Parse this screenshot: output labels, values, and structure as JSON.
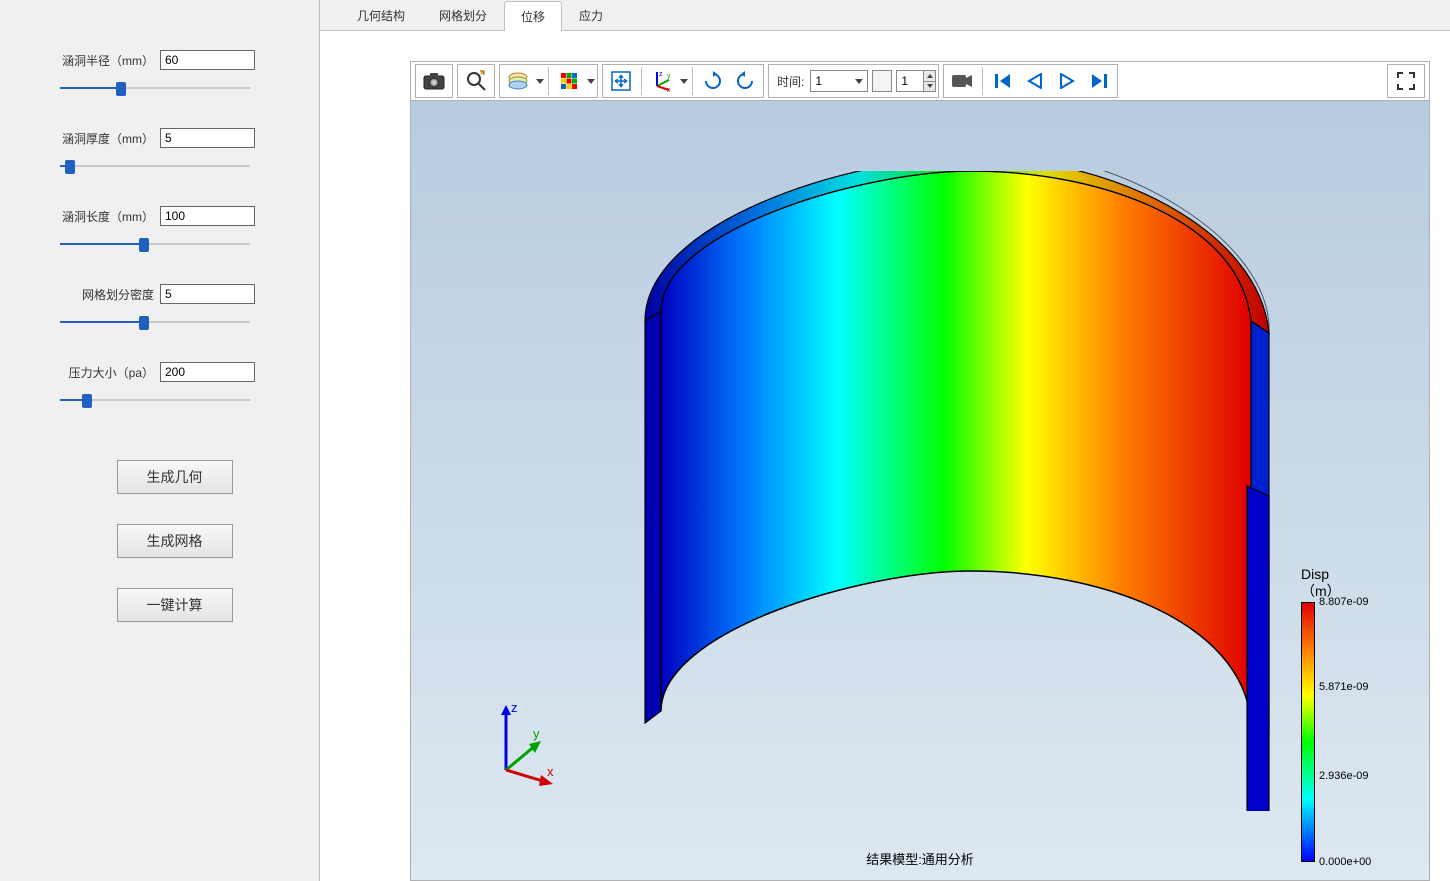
{
  "tabs": {
    "items": [
      "几何结构",
      "网格划分",
      "位移",
      "应力"
    ],
    "active_index": 2
  },
  "params": [
    {
      "label": "涵洞半径（mm）",
      "value": "60",
      "slider_pct": 32
    },
    {
      "label": "涵洞厚度（mm）",
      "value": "5",
      "slider_pct": 5
    },
    {
      "label": "涵洞长度（mm）",
      "value": "100",
      "slider_pct": 44
    },
    {
      "label": "网格划分密度",
      "value": "5",
      "slider_pct": 44
    },
    {
      "label": "压力大小（pa）",
      "value": "200",
      "slider_pct": 14
    }
  ],
  "buttons": {
    "gen_geom": "生成几何",
    "gen_mesh": "生成网格",
    "compute": "一键计算"
  },
  "toolbar": {
    "time_label": "时间:",
    "time_value": "1",
    "frame_value": "1"
  },
  "viewport": {
    "bottom_label": "结果模型:通用分析",
    "bg_top": "#b8cce0",
    "bg_bottom": "#dde8f0",
    "axis": {
      "x": "x",
      "y": "y",
      "z": "z",
      "x_color": "#d00000",
      "y_color": "#00a000",
      "z_color": "#0000e0"
    }
  },
  "legend": {
    "title_line1": "Disp",
    "title_line2": "（m）",
    "ticks": [
      {
        "label": "8.807e-09",
        "pos_pct": 0
      },
      {
        "label": "5.871e-09",
        "pos_pct": 33
      },
      {
        "label": "2.936e-09",
        "pos_pct": 67
      },
      {
        "label": "0.000e+00",
        "pos_pct": 100
      }
    ],
    "gradient_stops": [
      "#e00000",
      "#ff7f00",
      "#ffff00",
      "#00ff00",
      "#00ffff",
      "#0000ff"
    ]
  },
  "model": {
    "type": "half-cylinder-shell",
    "outline_color": "#000000",
    "contour_gradient": [
      "#0000c0",
      "#0080ff",
      "#00ffff",
      "#00ff00",
      "#ffff00",
      "#ff7f00",
      "#e00000"
    ]
  }
}
